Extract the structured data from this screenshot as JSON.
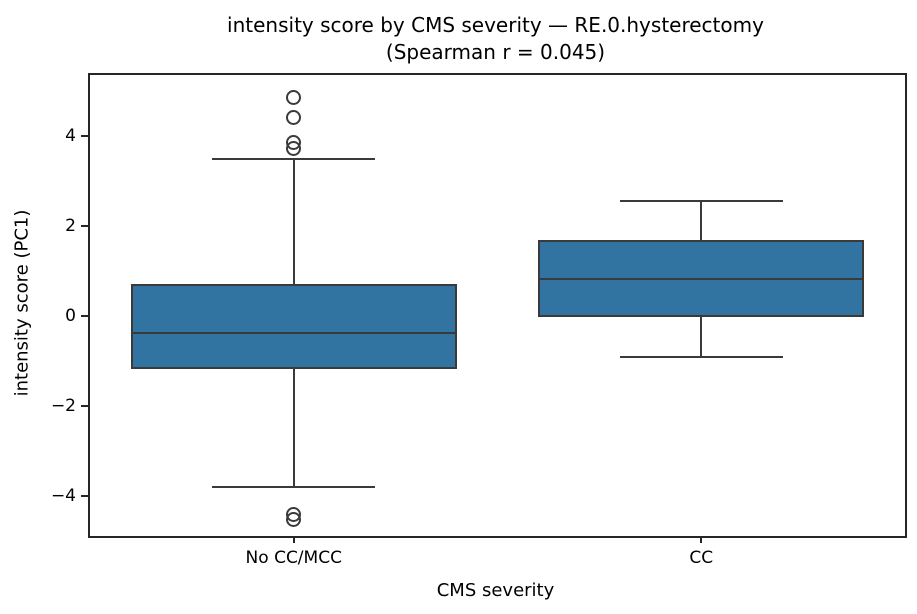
{
  "chart_data": {
    "type": "boxplot",
    "title": "intensity score by CMS severity — RE.0.hysterectomy",
    "subtitle": "(Spearman r = 0.045)",
    "xlabel": "CMS severity",
    "ylabel": "intensity score (PC1)",
    "categories": [
      "No CC/MCC",
      "CC"
    ],
    "yticks": [
      4,
      2,
      0,
      -2,
      -4
    ],
    "ytick_labels": [
      "4",
      "2",
      "0",
      "−2",
      "−4"
    ],
    "ylim": [
      -4.89,
      5.36
    ],
    "grid": false,
    "legend": "none",
    "colors": {
      "box_fill": "#3274a1",
      "box_line": "#3a3a3a",
      "spine": "#262626",
      "text": "#000000",
      "background": "#ffffff"
    },
    "series": [
      {
        "category": "No CC/MCC",
        "whisker_low": -3.8,
        "q1": -1.18,
        "median": -0.38,
        "q3": 0.72,
        "whisker_high": 3.5,
        "outliers": [
          4.85,
          4.42,
          3.87,
          3.72,
          -4.42,
          -4.52
        ]
      },
      {
        "category": "CC",
        "whisker_low": -0.9,
        "q1": -0.03,
        "median": 0.82,
        "q3": 1.69,
        "whisker_high": 2.56,
        "outliers": []
      }
    ]
  }
}
